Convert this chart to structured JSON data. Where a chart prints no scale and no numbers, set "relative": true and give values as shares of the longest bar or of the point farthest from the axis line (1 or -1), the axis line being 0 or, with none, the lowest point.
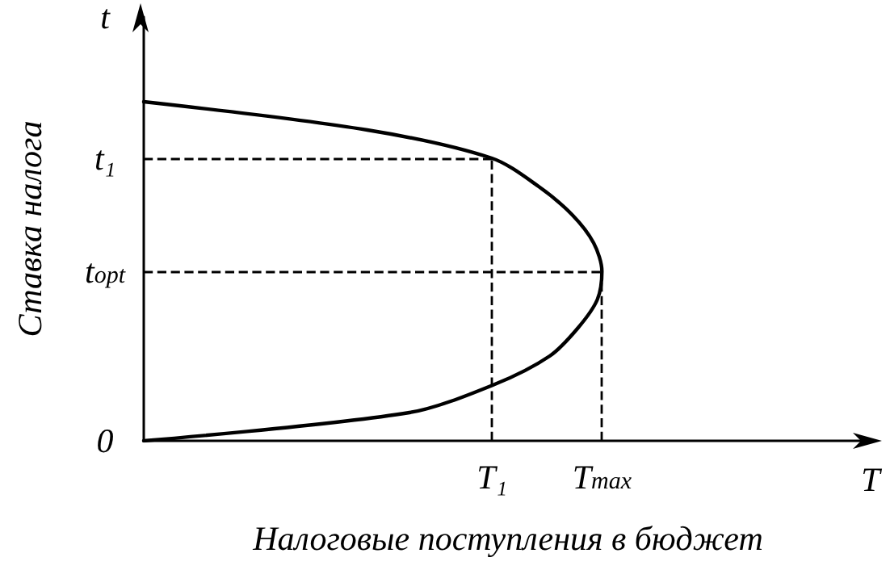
{
  "chart_data": {
    "type": "line",
    "orientation": "horizontal",
    "relative": true,
    "xlabel": "Налоговые поступления в бюджет",
    "ylabel": "Ставка налога",
    "categories": [
      "t",
      null,
      null,
      null,
      null,
      "t₁",
      null,
      null,
      null,
      "t$_{opt}$",
      null,
      null,
      null,
      null,
      null,
      "0"
    ],
    "series": [
      {
        "color": "#000000",
        "values": [
          null,
          null,
          null,
          0,
          0.488,
          0.76,
          0.862,
          0.935,
          0.982,
          1,
          0.99,
          0.948,
          0.886,
          0.766,
          0.58,
          0
        ]
      }
    ],
    "ref_lines": [
      {
        "axis": "y",
        "value": "t₁",
        "line_style": "dashed",
        "color": "#000000"
      },
      {
        "axis": "y",
        "value": "t$_{opt}$",
        "line_style": "dashed",
        "color": "#000000"
      },
      {
        "axis": "x",
        "value": 0.76,
        "label": "T₁",
        "line_style": "dashed",
        "color": "#000000"
      },
      {
        "axis": "x",
        "value": 1,
        "label": "T$_{max}$",
        "line_style": "dashed",
        "color": "#000000"
      }
    ],
    "annotations": [
      "T"
    ],
    "marker": "none",
    "line_style": "solid"
  }
}
